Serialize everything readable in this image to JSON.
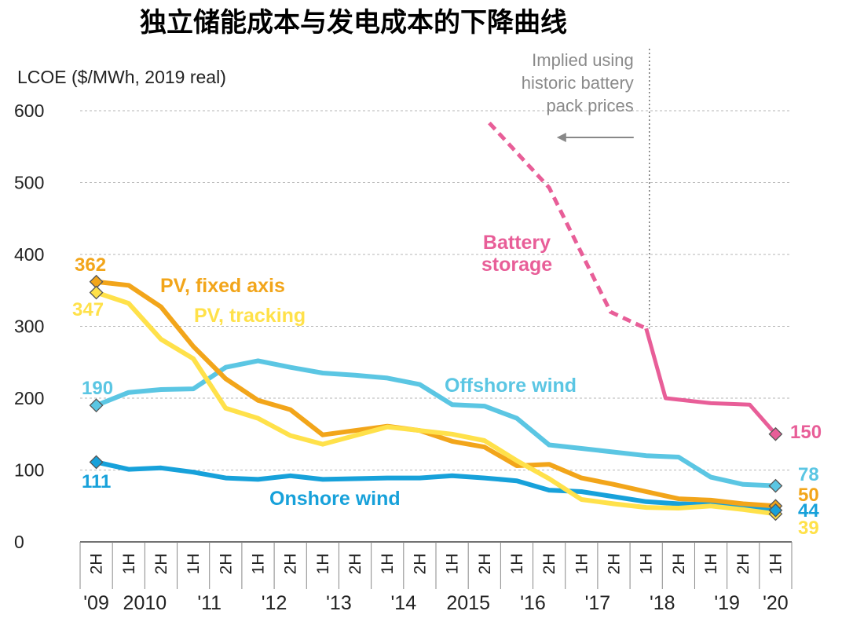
{
  "title": "独立储能成本与发电成本的下降曲线",
  "chart_data": {
    "type": "line",
    "ylabel": "LCOE ($/MWh, 2019 real)",
    "ylim": [
      0,
      600
    ],
    "yticks": [
      "0",
      "100",
      "200",
      "300",
      "400",
      "500",
      "600"
    ],
    "grid": "horizontal dashed",
    "categories": [
      "2H",
      "1H",
      "2H",
      "1H",
      "2H",
      "1H",
      "2H",
      "1H",
      "2H",
      "1H",
      "2H",
      "1H",
      "2H",
      "1H",
      "2H",
      "1H",
      "2H",
      "1H",
      "2H",
      "1H",
      "2H",
      "1H"
    ],
    "year_labels": [
      {
        "label": "'09",
        "from": 0,
        "to": 0
      },
      {
        "label": "2010",
        "from": 1,
        "to": 2
      },
      {
        "label": "'11",
        "from": 3,
        "to": 4
      },
      {
        "label": "'12",
        "from": 5,
        "to": 6
      },
      {
        "label": "'13",
        "from": 7,
        "to": 8
      },
      {
        "label": "'14",
        "from": 9,
        "to": 10
      },
      {
        "label": "2015",
        "from": 11,
        "to": 12
      },
      {
        "label": "'16",
        "from": 13,
        "to": 14
      },
      {
        "label": "'17",
        "from": 15,
        "to": 16
      },
      {
        "label": "'18",
        "from": 17,
        "to": 18
      },
      {
        "label": "'19",
        "from": 19,
        "to": 20
      },
      {
        "label": "'20",
        "from": 21,
        "to": 21
      }
    ],
    "series": [
      {
        "name": "PV, fixed axis",
        "color": "#F2A51A",
        "values": [
          362,
          357,
          327,
          272,
          227,
          197,
          184,
          149,
          155,
          161,
          155,
          140,
          132,
          106,
          108,
          89,
          80,
          70,
          60,
          58,
          53,
          50
        ],
        "start_label": "362",
        "end_label": "50"
      },
      {
        "name": "PV, tracking",
        "color": "#FFE14A",
        "values": [
          347,
          332,
          282,
          255,
          186,
          172,
          148,
          136,
          148,
          160,
          155,
          150,
          141,
          113,
          88,
          59,
          53,
          48,
          47,
          50,
          45,
          39
        ],
        "start_label": "347",
        "end_label": "39"
      },
      {
        "name": "Offshore wind",
        "color": "#5BC6E3",
        "values": [
          190,
          208,
          212,
          213,
          243,
          252,
          243,
          235,
          232,
          228,
          219,
          191,
          189,
          172,
          135,
          130,
          125,
          120,
          118,
          90,
          80,
          78
        ],
        "start_label": "190",
        "end_label": "78"
      },
      {
        "name": "Onshore wind",
        "color": "#17A1DA",
        "values": [
          111,
          101,
          103,
          97,
          89,
          87,
          92,
          87,
          88,
          89,
          89,
          92,
          89,
          85,
          72,
          70,
          63,
          56,
          53,
          52,
          48,
          44
        ],
        "start_label": "111",
        "end_label": "44"
      },
      {
        "name": "Battery storage",
        "color": "#E85E98",
        "points": [
          [
            12.15,
            583
          ],
          [
            14.0,
            493
          ],
          [
            15.9,
            320
          ],
          [
            17.0,
            297
          ],
          [
            17.6,
            200
          ],
          [
            19.0,
            193
          ],
          [
            20.2,
            191
          ],
          [
            21,
            150
          ]
        ],
        "dashed_until_x": 17.0,
        "end_label": "150"
      }
    ],
    "annotation": {
      "text": [
        "Implied using",
        "historic battery",
        "pack prices"
      ],
      "divider_x": 17.1
    }
  }
}
